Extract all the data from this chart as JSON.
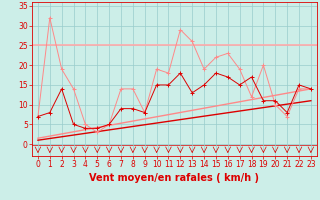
{
  "xlabel": "Vent moyen/en rafales ( km/h )",
  "bg_color": "#cceee8",
  "grid_color": "#99cccc",
  "xlim": [
    -0.5,
    23.5
  ],
  "ylim": [
    -3,
    36
  ],
  "xticks": [
    0,
    1,
    2,
    3,
    4,
    5,
    6,
    7,
    8,
    9,
    10,
    11,
    12,
    13,
    14,
    15,
    16,
    17,
    18,
    19,
    20,
    21,
    22,
    23
  ],
  "yticks": [
    0,
    5,
    10,
    15,
    20,
    25,
    30,
    35
  ],
  "hours": [
    0,
    1,
    2,
    3,
    4,
    5,
    6,
    7,
    8,
    9,
    10,
    11,
    12,
    13,
    14,
    15,
    16,
    17,
    18,
    19,
    20,
    21,
    22,
    23
  ],
  "wind_avg": [
    7,
    8,
    14,
    5,
    4,
    4,
    5,
    9,
    9,
    8,
    15,
    15,
    18,
    13,
    15,
    18,
    17,
    15,
    17,
    11,
    11,
    8,
    15,
    14
  ],
  "wind_gust": [
    7,
    32,
    19,
    14,
    5,
    3,
    5,
    14,
    14,
    8,
    19,
    18,
    29,
    26,
    19,
    22,
    23,
    19,
    12,
    20,
    10,
    7,
    14,
    14
  ],
  "wind_max_val": 25,
  "wind_dir_y": -1.5,
  "color_gust": "#ff8888",
  "color_avg": "#dd0000",
  "color_max": "#ffaaaa",
  "trend_avg": [
    1.0,
    11.0
  ],
  "trend_gust": [
    1.5,
    14.0
  ],
  "xlabel_fontsize": 7,
  "tick_fontsize": 5.5
}
